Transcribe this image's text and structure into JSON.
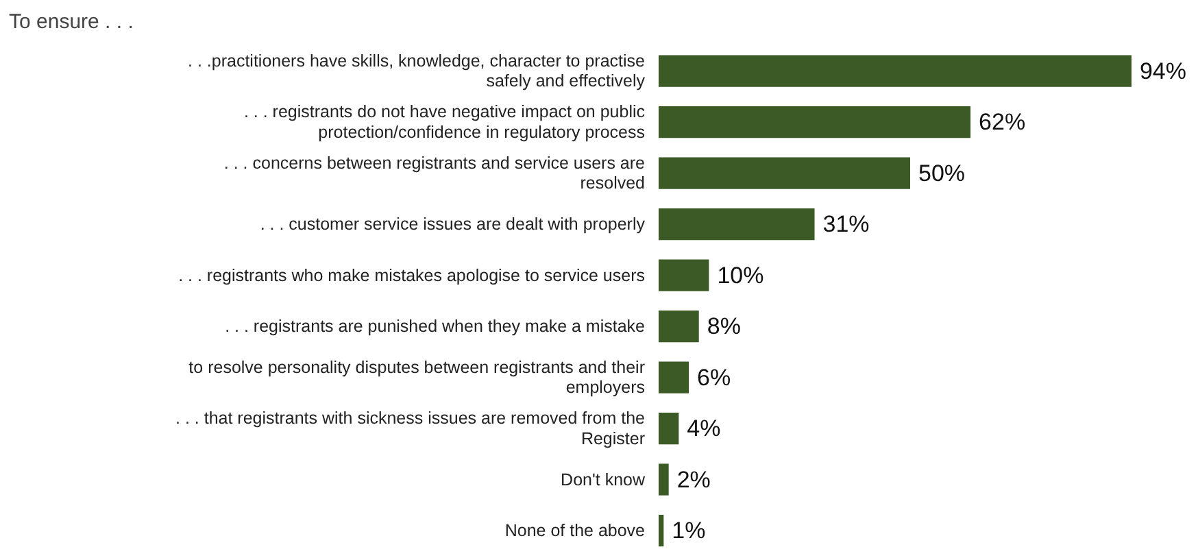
{
  "chart_data": {
    "type": "bar",
    "orientation": "horizontal",
    "title": "To ensure . . .",
    "categories": [
      ". . .practitioners have skills, knowledge, character to practise safely and effectively",
      ". . . registrants do not have negative impact on public protection/confidence in regulatory process",
      ". . . concerns between registrants and service users are resolved",
      ". . . customer service issues are dealt with properly",
      ". . . registrants who make mistakes apologise to service users",
      ". . . registrants are punished when they make a mistake",
      "to resolve personality disputes between registrants and their employers",
      ". . . that registrants with sickness issues are removed from the Register",
      "Don't know",
      "None of the above"
    ],
    "values": [
      94,
      62,
      50,
      31,
      10,
      8,
      6,
      4,
      2,
      1
    ],
    "value_labels": [
      "94%",
      "62%",
      "50%",
      "31%",
      "10%",
      "8%",
      "6%",
      "4%",
      "2%",
      "1%"
    ],
    "color": "#3b5a26"
  }
}
